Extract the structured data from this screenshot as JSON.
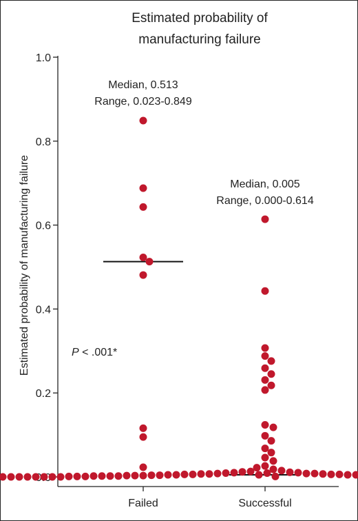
{
  "chart_data": {
    "type": "scatter",
    "title": [
      "Estimated probability of",
      "manufacturing failure"
    ],
    "ylabel": "Estimated probability of manufacturing failure",
    "xlabel": "",
    "ylim": [
      0,
      1.0
    ],
    "yticks": [
      "0.0",
      "0.2",
      "0.4",
      "0.6",
      "0.8",
      "1.0"
    ],
    "categories": [
      "Failed",
      "Successful"
    ],
    "colors": {
      "point": "#c0182c",
      "median": "#111111",
      "axis": "#222222"
    },
    "grid": false,
    "legend": "none",
    "series": [
      {
        "category": "Failed",
        "median": 0.513,
        "values": [
          0.849,
          0.688,
          0.643,
          0.523,
          0.513,
          0.481,
          0.116,
          0.095,
          0.023
        ]
      },
      {
        "category": "Successful",
        "median": 0.005,
        "values": [
          0.614,
          0.443,
          0.307,
          0.288,
          0.276,
          0.259,
          0.245,
          0.231,
          0.218,
          0.207,
          0.124,
          0.118,
          0.098,
          0.086,
          0.068,
          0.058,
          0.046,
          0.038,
          0.026,
          0.022,
          0.018,
          0.015,
          0.013,
          0.012,
          0.011,
          0.01,
          0.01,
          0.009,
          0.009,
          0.008,
          0.008,
          0.008,
          0.007,
          0.007,
          0.007,
          0.006,
          0.006,
          0.006,
          0.006,
          0.005,
          0.005,
          0.005,
          0.005,
          0.005,
          0.004,
          0.004,
          0.004,
          0.004,
          0.004,
          0.003,
          0.003,
          0.003,
          0.003,
          0.003,
          0.003,
          0.002,
          0.002,
          0.002,
          0.002,
          0.002,
          0.002,
          0.002,
          0.001,
          0.001,
          0.001,
          0.001,
          0.001,
          0.001,
          0.001,
          0.001,
          0.0,
          0.0,
          0.0,
          0.0,
          0.0,
          0.0,
          0.0,
          0.0,
          0.0,
          0.0,
          0.0,
          0.0,
          0.0,
          0.0,
          0.0,
          0.0,
          0.0,
          0.0
        ]
      }
    ],
    "annotations": {
      "failed": [
        "Median, 0.513",
        "Range, 0.023-0.849"
      ],
      "successful": [
        "Median, 0.005",
        "Range, 0.000-0.614"
      ],
      "pvalue_italic": "P",
      "pvalue_rest": " < .001*"
    }
  }
}
